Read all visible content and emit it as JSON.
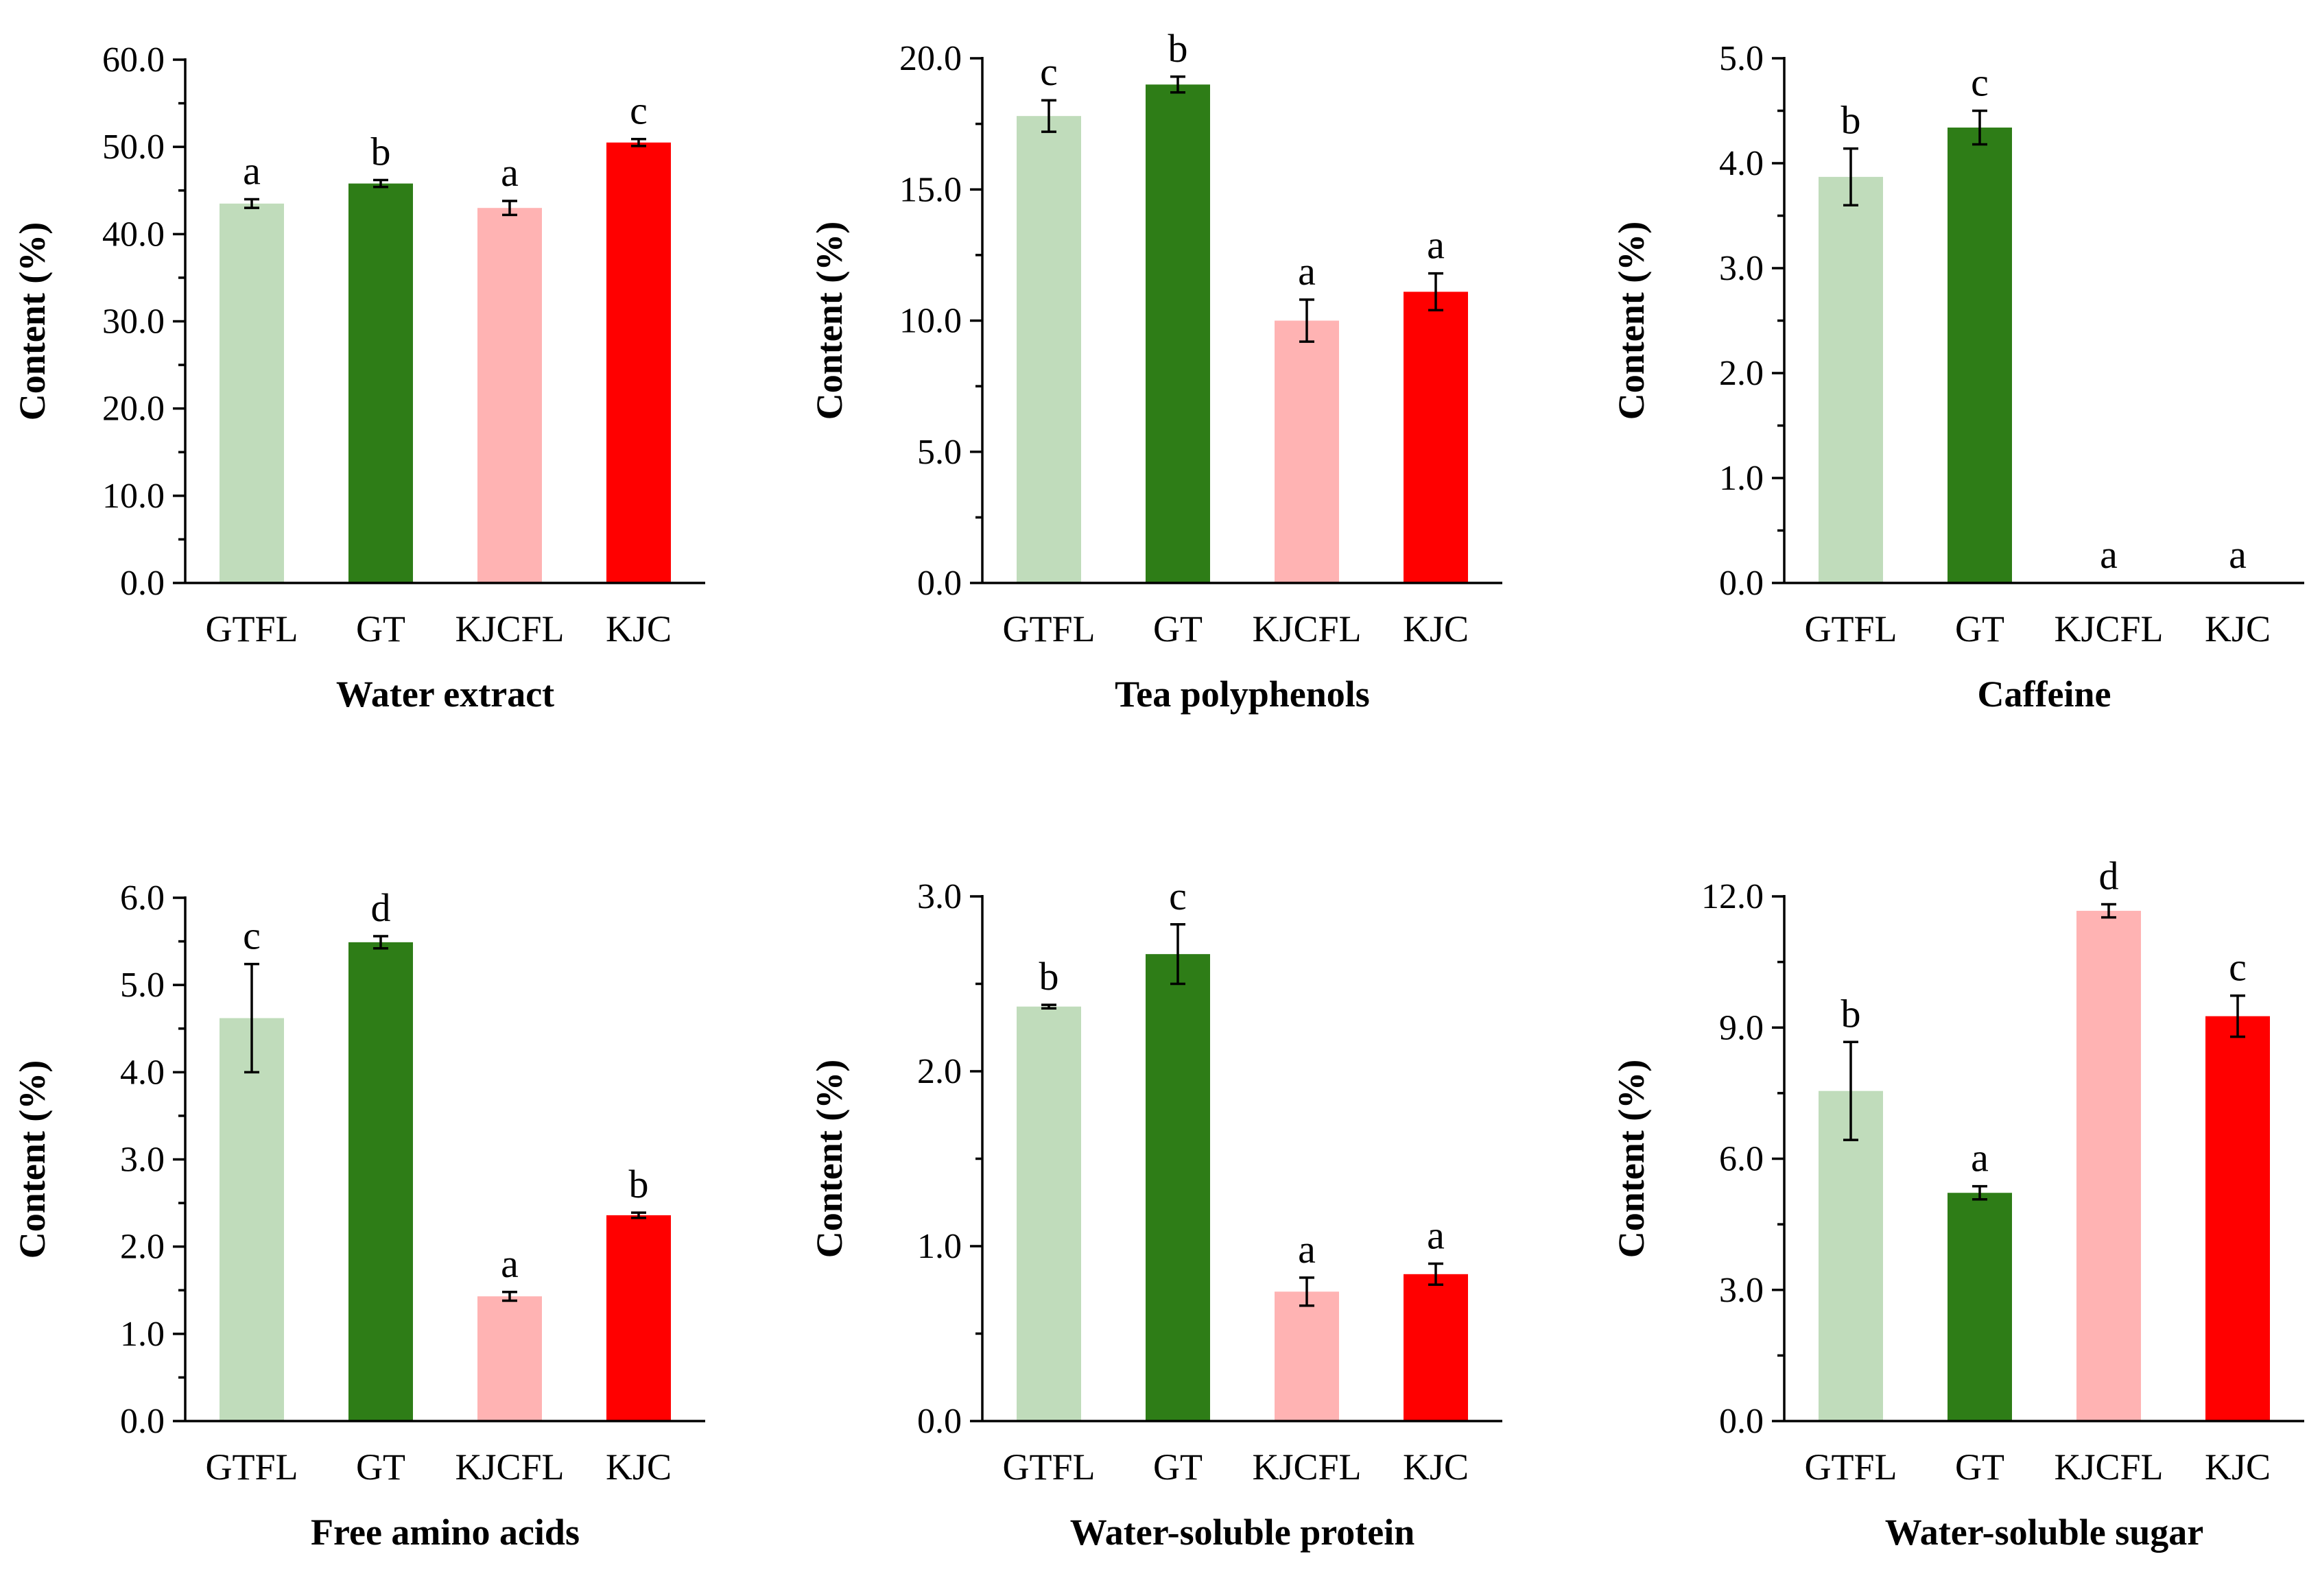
{
  "colors": {
    "GTFL": "#c0dcbb",
    "GT": "#2e7d17",
    "KJCFL": "#ffb3b3",
    "KJC": "#ff0000",
    "axis": "#000000"
  },
  "chart_data": [
    {
      "type": "bar",
      "title": "Water extract",
      "xlabel": "Water extract",
      "ylabel": "Content (%)",
      "categories": [
        "GTFL",
        "GT",
        "KJCFL",
        "KJC"
      ],
      "values": [
        43.5,
        45.8,
        43.0,
        50.5
      ],
      "errors": [
        0.5,
        0.4,
        0.8,
        0.4
      ],
      "letters": [
        "a",
        "b",
        "a",
        "c"
      ],
      "ylim": [
        0,
        60
      ],
      "yticks": [
        0,
        10,
        20,
        30,
        40,
        50,
        60
      ],
      "ytick_labels": [
        "0.0",
        "10.0",
        "20.0",
        "30.0",
        "40.0",
        "50.0",
        "60.0"
      ]
    },
    {
      "type": "bar",
      "title": "Tea polyphenols",
      "xlabel": "Tea polyphenols",
      "ylabel": "Content (%)",
      "categories": [
        "GTFL",
        "GT",
        "KJCFL",
        "KJC"
      ],
      "values": [
        17.8,
        19.0,
        10.0,
        11.1
      ],
      "errors": [
        0.6,
        0.3,
        0.8,
        0.7
      ],
      "letters": [
        "c",
        "b",
        "a",
        "a"
      ],
      "ylim": [
        0,
        20
      ],
      "yticks": [
        0,
        5,
        10,
        15,
        20
      ],
      "ytick_labels": [
        "0.0",
        "5.0",
        "10.0",
        "15.0",
        "20.0"
      ]
    },
    {
      "type": "bar",
      "title": "Caffeine",
      "xlabel": "Caffeine",
      "ylabel": "Content (%)",
      "categories": [
        "GTFL",
        "GT",
        "KJCFL",
        "KJC"
      ],
      "values": [
        3.87,
        4.34,
        0,
        0
      ],
      "errors": [
        0.27,
        0.16,
        0,
        0
      ],
      "letters": [
        "b",
        "c",
        "a",
        "a"
      ],
      "ylim": [
        0,
        5
      ],
      "yticks": [
        0,
        1,
        2,
        3,
        4,
        5
      ],
      "ytick_labels": [
        "0.0",
        "1.0",
        "2.0",
        "3.0",
        "4.0",
        "5.0"
      ]
    },
    {
      "type": "bar",
      "title": "Free amino acids",
      "xlabel": "Free amino acids",
      "ylabel": "Content (%)",
      "categories": [
        "GTFL",
        "GT",
        "KJCFL",
        "KJC"
      ],
      "values": [
        4.62,
        5.49,
        1.43,
        2.36
      ],
      "errors": [
        0.62,
        0.07,
        0.05,
        0.03
      ],
      "letters": [
        "c",
        "d",
        "a",
        "b"
      ],
      "ylim": [
        0,
        6
      ],
      "yticks": [
        0,
        1,
        2,
        3,
        4,
        5,
        6
      ],
      "ytick_labels": [
        "0.0",
        "1.0",
        "2.0",
        "3.0",
        "4.0",
        "5.0",
        "6.0"
      ]
    },
    {
      "type": "bar",
      "title": "Water-soluble protein",
      "xlabel": "Water-soluble protein",
      "ylabel": "Content (%)",
      "categories": [
        "GTFL",
        "GT",
        "KJCFL",
        "KJC"
      ],
      "values": [
        2.37,
        2.67,
        0.74,
        0.84
      ],
      "errors": [
        0.01,
        0.17,
        0.08,
        0.06
      ],
      "letters": [
        "b",
        "c",
        "a",
        "a"
      ],
      "ylim": [
        0,
        3
      ],
      "yticks": [
        0,
        1,
        2,
        3
      ],
      "ytick_labels": [
        "0.0",
        "1.0",
        "2.0",
        "3.0"
      ]
    },
    {
      "type": "bar",
      "title": "Water-soluble sugar",
      "xlabel": "Water-soluble sugar",
      "ylabel": "Content (%)",
      "categories": [
        "GTFL",
        "GT",
        "KJCFL",
        "KJC"
      ],
      "values": [
        7.55,
        5.22,
        11.67,
        9.26
      ],
      "errors": [
        1.12,
        0.15,
        0.15,
        0.47
      ],
      "letters": [
        "b",
        "a",
        "d",
        "c"
      ],
      "ylim": [
        0,
        12
      ],
      "yticks": [
        0,
        3,
        6,
        9,
        12
      ],
      "ytick_labels": [
        "0.0",
        "3.0",
        "6.0",
        "9.0",
        "12.0"
      ]
    }
  ]
}
